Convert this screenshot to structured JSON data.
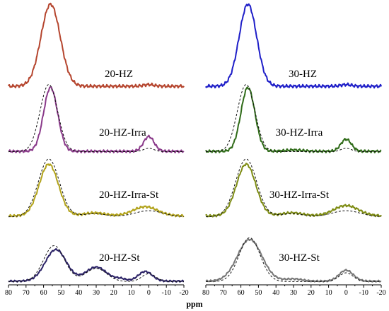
{
  "chart_data": {
    "type": "line",
    "xlabel": "ppm",
    "x_ticks": [
      80,
      70,
      60,
      50,
      40,
      30,
      20,
      10,
      0,
      -10,
      -20
    ],
    "x_tick_labels": [
      "80",
      "70",
      "60",
      "50",
      "40",
      "30",
      "20",
      "10",
      "0",
      "-10",
      "-20"
    ],
    "xlim": [
      80,
      -20
    ],
    "ylabel": "",
    "grid": false,
    "panels": [
      {
        "name": "20-HZ",
        "color": "#b5452e",
        "peaks": [
          [
            56,
            5.5,
            1.0
          ],
          [
            0,
            3.0,
            0.02
          ]
        ],
        "fit_peaks": [
          [
            56,
            5.5,
            1.0
          ],
          [
            0,
            3.0,
            0.02
          ]
        ],
        "baseline": 0.0,
        "fit_visible": false
      },
      {
        "name": "20-HZ-Irra",
        "color": "#8a3a8a",
        "peaks": [
          [
            56,
            4.0,
            0.95
          ],
          [
            0,
            3.0,
            0.22
          ]
        ],
        "fit_peaks": [
          [
            57,
            5.0,
            1.0
          ],
          [
            0,
            3.0,
            0.05
          ]
        ],
        "baseline": 0.01,
        "fit_visible": true
      },
      {
        "name": "20-HZ-Irra-St",
        "color": "#b2a31c",
        "peaks": [
          [
            57,
            5.5,
            0.85
          ],
          [
            31,
            6.0,
            0.05
          ],
          [
            2,
            7.0,
            0.15
          ]
        ],
        "fit_peaks": [
          [
            57,
            6.0,
            0.95
          ],
          [
            31,
            7.0,
            0.05
          ],
          [
            0,
            8.0,
            0.1
          ]
        ],
        "baseline": 0.03,
        "fit_visible": true
      },
      {
        "name": "20-HZ-St",
        "color": "#2b2266",
        "peaks": [
          [
            53,
            6.0,
            0.72
          ],
          [
            30,
            6.0,
            0.32
          ],
          [
            2,
            4.0,
            0.22
          ],
          [
            16,
            3.0,
            0.05
          ]
        ],
        "fit_peaks": [
          [
            54,
            6.0,
            0.82
          ],
          [
            30,
            6.0,
            0.3
          ],
          [
            0,
            4.0,
            0.18
          ]
        ],
        "baseline": 0.02,
        "fit_visible": true
      },
      {
        "name": "30-HZ",
        "color": "#1e1ec8",
        "peaks": [
          [
            56,
            5.0,
            1.0
          ],
          [
            0,
            3.0,
            0.02
          ]
        ],
        "fit_peaks": [
          [
            56,
            5.0,
            1.0
          ]
        ],
        "baseline": 0.0,
        "fit_visible": false
      },
      {
        "name": "30-HZ-Irra",
        "color": "#2f6b18",
        "peaks": [
          [
            56,
            4.0,
            0.95
          ],
          [
            0,
            3.0,
            0.18
          ],
          [
            30,
            5.0,
            0.02
          ]
        ],
        "fit_peaks": [
          [
            57,
            5.0,
            1.0
          ],
          [
            0,
            3.0,
            0.05
          ]
        ],
        "baseline": 0.01,
        "fit_visible": true
      },
      {
        "name": "30-HZ-Irra-St",
        "color": "#7e8c14",
        "peaks": [
          [
            57,
            5.5,
            0.85
          ],
          [
            31,
            6.0,
            0.05
          ],
          [
            0,
            7.0,
            0.17
          ]
        ],
        "fit_peaks": [
          [
            57,
            6.0,
            0.95
          ],
          [
            31,
            7.0,
            0.05
          ],
          [
            0,
            8.0,
            0.1
          ]
        ],
        "baseline": 0.03,
        "fit_visible": true
      },
      {
        "name": "30-HZ-St",
        "color": "#777777",
        "peaks": [
          [
            55,
            7.0,
            0.95
          ],
          [
            30,
            5.0,
            0.05
          ],
          [
            0,
            4.0,
            0.25
          ]
        ],
        "fit_peaks": [
          [
            55,
            6.0,
            1.0
          ],
          [
            0,
            4.0,
            0.2
          ]
        ],
        "baseline": 0.02,
        "fit_visible": true
      }
    ]
  }
}
